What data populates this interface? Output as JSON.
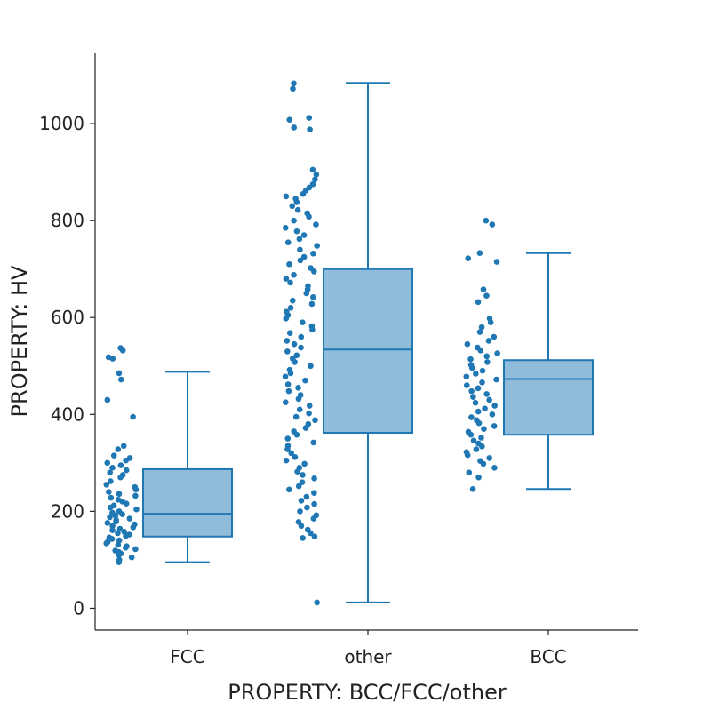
{
  "chart_data": {
    "type": "box",
    "title": "",
    "xlabel": "PROPERTY: BCC/FCC/other",
    "ylabel": "PROPERTY: HV",
    "categories": [
      "FCC",
      "other",
      "BCC"
    ],
    "ylim": [
      -45,
      1145
    ],
    "yticks": [
      0,
      200,
      400,
      600,
      800,
      1000
    ],
    "grid": false,
    "legend": "none",
    "colors": {
      "box_fill": "#8fbcdb",
      "box_edge": "#1f77b4",
      "points": "#1f77b4"
    },
    "boxes": [
      {
        "category": "FCC",
        "whisker_low": 95,
        "q1": 148,
        "median": 195,
        "q3": 287,
        "whisker_high": 488
      },
      {
        "category": "other",
        "whisker_low": 12,
        "q1": 362,
        "median": 534,
        "q3": 700,
        "whisker_high": 1084
      },
      {
        "category": "BCC",
        "whisker_low": 246,
        "q1": 358,
        "median": 473,
        "q3": 512,
        "whisker_high": 733
      }
    ],
    "points": [
      {
        "category": "FCC",
        "values": [
          537,
          532,
          518,
          515,
          485,
          472,
          430,
          395,
          335,
          328,
          315,
          310,
          305,
          300,
          295,
          290,
          285,
          280,
          275,
          270,
          262,
          255,
          250,
          245,
          240,
          236,
          232,
          228,
          224,
          220,
          216,
          212,
          208,
          204,
          200,
          197,
          194,
          191,
          188,
          185,
          182,
          179,
          176,
          173,
          170,
          167,
          164,
          161,
          158,
          155,
          152,
          149,
          146,
          143,
          140,
          137,
          134,
          131,
          128,
          125,
          122,
          119,
          116,
          113,
          110,
          105,
          100,
          95
        ]
      },
      {
        "category": "other",
        "values": [
          1083,
          1072,
          1012,
          1008,
          992,
          988,
          905,
          895,
          885,
          875,
          868,
          862,
          855,
          850,
          845,
          838,
          830,
          822,
          815,
          808,
          800,
          792,
          785,
          778,
          770,
          762,
          755,
          748,
          740,
          732,
          725,
          718,
          710,
          702,
          695,
          688,
          680,
          672,
          665,
          658,
          650,
          642,
          635,
          628,
          620,
          612,
          605,
          598,
          590,
          582,
          575,
          568,
          560,
          552,
          545,
          538,
          530,
          522,
          515,
          508,
          500,
          492,
          485,
          478,
          470,
          462,
          455,
          448,
          440,
          432,
          425,
          418,
          410,
          402,
          395,
          388,
          380,
          372,
          365,
          358,
          350,
          342,
          335,
          328,
          320,
          312,
          305,
          298,
          290,
          282,
          275,
          268,
          260,
          252,
          245,
          238,
          230,
          222,
          215,
          208,
          200,
          192,
          185,
          178,
          170,
          162,
          155,
          148,
          145,
          12
        ]
      },
      {
        "category": "BCC",
        "values": [
          800,
          792,
          733,
          722,
          715,
          658,
          645,
          632,
          598,
          590,
          580,
          570,
          560,
          552,
          545,
          538,
          532,
          526,
          520,
          514,
          508,
          502,
          496,
          490,
          484,
          478,
          472,
          466,
          460,
          454,
          448,
          442,
          436,
          430,
          424,
          418,
          412,
          406,
          400,
          394,
          388,
          382,
          376,
          370,
          364,
          358,
          352,
          346,
          340,
          334,
          328,
          322,
          316,
          310,
          304,
          298,
          290,
          280,
          270,
          246
        ]
      }
    ]
  }
}
